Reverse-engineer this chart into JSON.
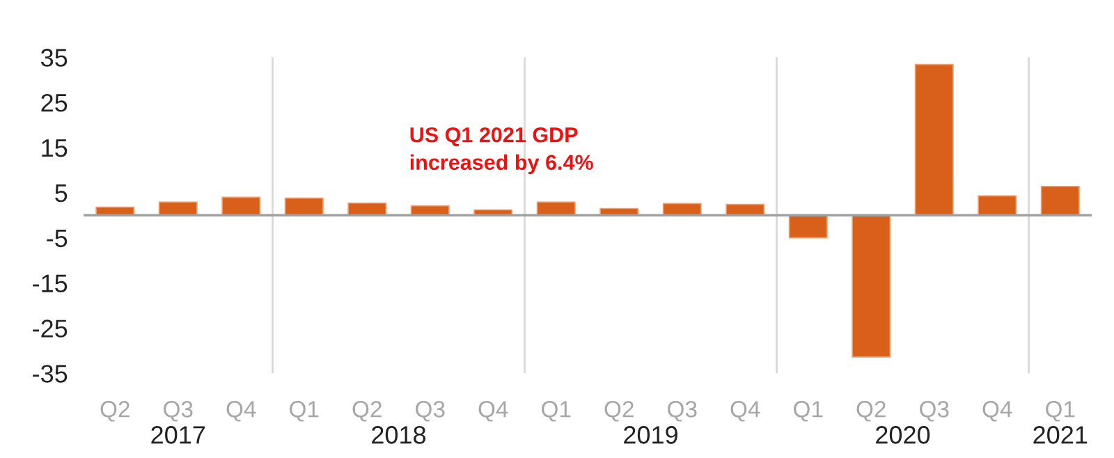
{
  "chart_data": {
    "type": "bar",
    "categories": [
      "Q2",
      "Q3",
      "Q4",
      "Q1",
      "Q2",
      "Q3",
      "Q4",
      "Q1",
      "Q2",
      "Q3",
      "Q4",
      "Q1",
      "Q2",
      "Q3",
      "Q4",
      "Q1"
    ],
    "values": [
      1.8,
      2.9,
      4.0,
      3.8,
      2.7,
      2.1,
      1.2,
      2.9,
      1.5,
      2.6,
      2.4,
      -5.0,
      -31.4,
      33.4,
      4.3,
      6.4
    ],
    "color": "#d9601a",
    "ylim": [
      -35,
      35
    ],
    "yticks": [
      -35,
      -25,
      -15,
      -5,
      5,
      15,
      25,
      35
    ],
    "annotations": [
      "US Q1 2021 GDP\nincreased by 6.4%",
      "2017",
      "2018",
      "2019",
      "2020",
      "2021"
    ],
    "grid": false,
    "legend": false
  }
}
